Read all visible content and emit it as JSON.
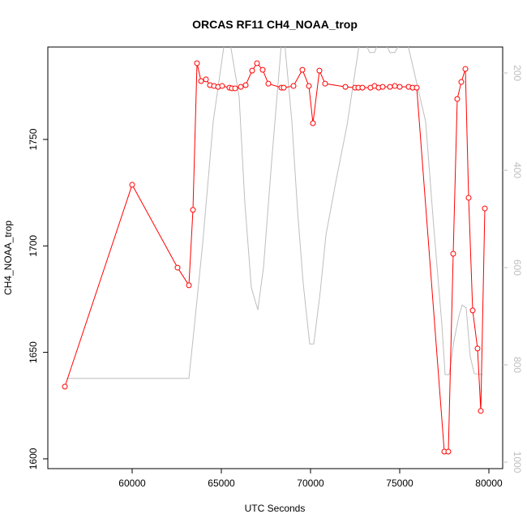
{
  "chart_data": {
    "type": "line",
    "title": "ORCAS RF11 CH4_NOAA_trop",
    "x_label": "UTC Seconds",
    "y_label": "CH4_NOAA_trop",
    "xlim": [
      55273,
      80773
    ],
    "xticks": [
      60000,
      65000,
      70000,
      75000,
      80000
    ],
    "ylim": [
      1595.4,
      1793.4
    ],
    "yticks": [
      1600,
      1650,
      1700,
      1750
    ],
    "y2lim": [
      1013.3,
      146.7
    ],
    "y2ticks": [
      200,
      400,
      600,
      800,
      1000
    ],
    "series": [
      {
        "color": "#bebebe",
        "axis": "y2",
        "marker": "none",
        "x": [
          56318,
          63182,
          63500,
          63955,
          64545,
          65318,
          66000,
          66318,
          66682,
          67045,
          67364,
          67818,
          68455,
          68955,
          69273,
          69591,
          69955,
          70182,
          70545,
          70864,
          71455,
          72045,
          72818,
          73318,
          73591,
          73955,
          74455,
          74727,
          75318,
          76455,
          76909,
          77364,
          77545,
          77773,
          78045,
          78318,
          78500,
          78727,
          78955,
          79182,
          79636
        ],
        "values": [
          828,
          828,
          716,
          550,
          300,
          100,
          250,
          467,
          641,
          687,
          600,
          383,
          100,
          300,
          483,
          633,
          757,
          757,
          650,
          533,
          417,
          308,
          120,
          158,
          158,
          120,
          158,
          158,
          120,
          300,
          517,
          717,
          820,
          820,
          750,
          700,
          677,
          683,
          783,
          818,
          820
        ]
      },
      {
        "color": "#ff0000",
        "axis": "y",
        "marker": "circle",
        "x": [
          56228,
          60000,
          62545,
          63182,
          63409,
          63636,
          63864,
          64136,
          64364,
          64591,
          64818,
          65045,
          65455,
          65591,
          65773,
          66091,
          66364,
          66727,
          67000,
          67318,
          67636,
          68364,
          68500,
          69045,
          69545,
          69909,
          70136,
          70500,
          70818,
          71955,
          72500,
          72682,
          72909,
          73364,
          73591,
          73818,
          74045,
          74455,
          74727,
          75000,
          75500,
          75727,
          75955,
          77500,
          77727,
          78000,
          78227,
          78455,
          78682,
          78864,
          79091,
          79364,
          79545,
          79773
        ],
        "values": [
          1633.9,
          1728.7,
          1689.8,
          1681.5,
          1716.9,
          1785.8,
          1777.4,
          1778.2,
          1775.5,
          1775.1,
          1774.7,
          1775.1,
          1774.3,
          1774.0,
          1774.0,
          1774.7,
          1775.5,
          1782.3,
          1785.8,
          1782.7,
          1776.2,
          1774.3,
          1774.3,
          1775.1,
          1782.7,
          1775.1,
          1757.6,
          1782.3,
          1776.2,
          1774.7,
          1774.3,
          1774.3,
          1774.3,
          1774.3,
          1775.1,
          1774.3,
          1774.7,
          1774.7,
          1775.1,
          1774.7,
          1774.7,
          1774.3,
          1774.3,
          1603.4,
          1603.4,
          1696.3,
          1769.0,
          1777.0,
          1783.1,
          1722.6,
          1669.7,
          1651.8,
          1622.5,
          1717.6
        ]
      }
    ]
  }
}
